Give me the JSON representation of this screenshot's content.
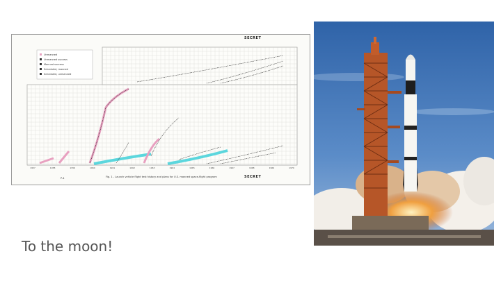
{
  "slide": {
    "caption": "To the moon!",
    "images": [
      {
        "name": "launch-history-chart",
        "description_visible": false
      },
      {
        "name": "rocket-launch-photo",
        "description_visible": false
      }
    ]
  },
  "chart_doc": {
    "stamp": "SECRET",
    "figure_caption": "Fig. 1 - Launch vehicle flight test history and plans for U.S. manned space-flight program",
    "page_label": "P-4",
    "legend": [
      "Unmanned",
      "Unmanned success",
      "Manned success",
      "Scheduled, manned",
      "Scheduled, unmanned"
    ],
    "years": [
      "1957",
      "1958",
      "1959",
      "1960",
      "1961",
      "1962",
      "1963",
      "1964",
      "1965",
      "1966",
      "1967",
      "1968",
      "1969",
      "1970"
    ],
    "colors": {
      "pink": "#e8a0c0",
      "cyan": "#3fd0d8",
      "line": "#222222",
      "grid": "#d4d4cc"
    }
  },
  "photo": {
    "colors": {
      "sky": "#3f78b8",
      "sky_light": "#7fa7d6",
      "tower": "#b8582a",
      "rocket": "#f4f4f0",
      "smoke": "#f0ebe4",
      "fire": "#e27a2a"
    }
  }
}
